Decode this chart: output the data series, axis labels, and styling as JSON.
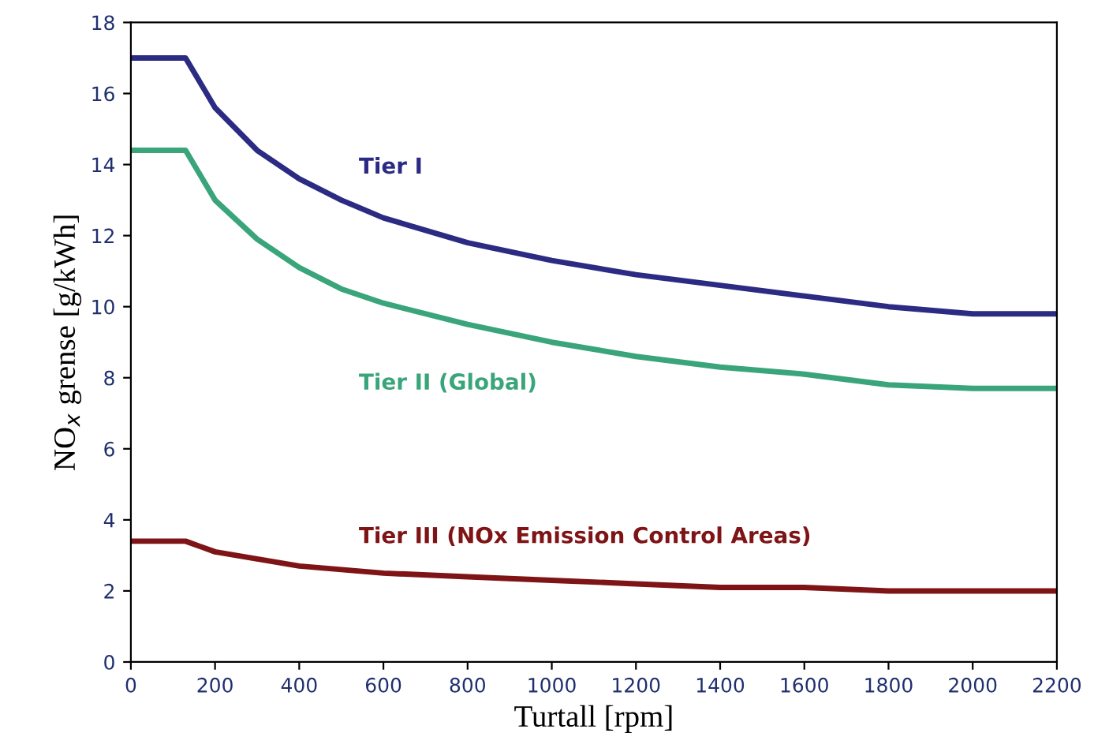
{
  "chart_data": {
    "type": "line",
    "xlabel": "Turtall [rpm]",
    "ylabel": "NO$_{x}$ grense [g/kWh]",
    "x": [
      0,
      130,
      200,
      300,
      400,
      500,
      600,
      800,
      1000,
      1200,
      1400,
      1600,
      1800,
      2000,
      2200
    ],
    "series": [
      {
        "name": "Tier I",
        "color": "#2b2b83",
        "values": [
          17.0,
          17.0,
          15.6,
          14.4,
          13.6,
          13.0,
          12.5,
          11.8,
          11.3,
          10.9,
          10.6,
          10.3,
          10.0,
          9.8,
          9.8
        ]
      },
      {
        "name": "Tier II (Global)",
        "color": "#3aa57a",
        "values": [
          14.4,
          14.4,
          13.0,
          11.9,
          11.1,
          10.5,
          10.1,
          9.5,
          9.0,
          8.6,
          8.3,
          8.1,
          7.8,
          7.7,
          7.7
        ]
      },
      {
        "name": "Tier III (NOx Emission Control Areas)",
        "color": "#7f1416",
        "values": [
          3.4,
          3.4,
          3.1,
          2.9,
          2.7,
          2.6,
          2.5,
          2.4,
          2.3,
          2.2,
          2.1,
          2.1,
          2.0,
          2.0,
          2.0
        ]
      }
    ],
    "xlim": [
      0,
      2200
    ],
    "xticks": [
      0,
      200,
      400,
      600,
      800,
      1000,
      1200,
      1400,
      1600,
      1800,
      2000,
      2200
    ],
    "ylim": [
      0,
      18
    ],
    "yticks": [
      0,
      2,
      4,
      6,
      8,
      10,
      12,
      14,
      16,
      18
    ],
    "grid": false,
    "legend": false,
    "marker": "none",
    "line_style": "solid"
  }
}
